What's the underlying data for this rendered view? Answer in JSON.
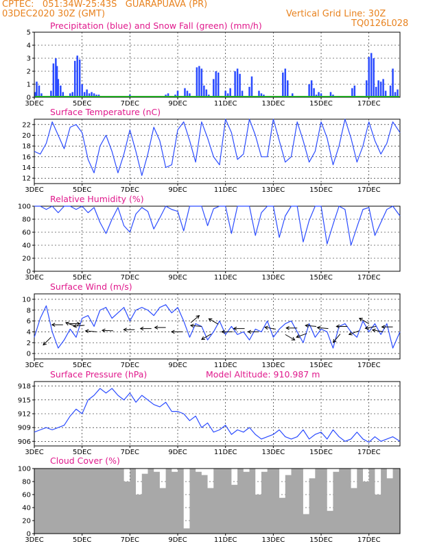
{
  "header": {
    "line1_left": "CPTEC:   051:34W-25:43S   GUARAPUAVA (PR)",
    "line2_left": "03DEC2020 30Z (GMT)",
    "line2_right": "Vertical Grid Line: 30Z",
    "line3_right": "TQ0126L028"
  },
  "colors": {
    "header": "#e8821e",
    "panel_title": "#e0198c",
    "line": "#2a4bff",
    "precip": "#2a4bff",
    "snow": "#1faa1f",
    "cloud": "#a8a8a8",
    "grid": "#000000"
  },
  "x_ticks": [
    "3DEC",
    "5DEC",
    "7DEC",
    "9DEC",
    "11DEC",
    "13DEC",
    "15DEC",
    "17DEC"
  ],
  "x_tick_days": [
    0,
    2,
    4,
    6,
    8,
    10,
    12,
    14
  ],
  "x_day_range": [
    0,
    15.3
  ],
  "chart_data": [
    {
      "type": "bar",
      "title": "Precipitation (blue) and Snow Fall (green) (mm/h)",
      "ylim": [
        0,
        5
      ],
      "yticks": [
        "0",
        "1",
        "2",
        "3",
        "4",
        "5"
      ],
      "series": [
        {
          "name": "Precipitation",
          "x": [
            0.05,
            0.1,
            0.2,
            0.3,
            0.7,
            0.8,
            0.9,
            0.95,
            1.0,
            1.1,
            1.2,
            1.5,
            1.6,
            1.7,
            1.8,
            1.9,
            2.0,
            2.1,
            2.2,
            2.3,
            2.4,
            2.5,
            2.6,
            2.7,
            3.9,
            4.0,
            4.1,
            5.5,
            5.6,
            5.9,
            6.0,
            6.3,
            6.4,
            6.5,
            6.8,
            6.9,
            7.0,
            7.1,
            7.2,
            7.3,
            7.5,
            7.6,
            7.7,
            8.0,
            8.1,
            8.2,
            8.4,
            8.5,
            8.6,
            8.7,
            9.0,
            9.1,
            9.4,
            9.5,
            9.6,
            10.4,
            10.5,
            10.6,
            10.8,
            11.5,
            11.6,
            11.7,
            11.8,
            11.9,
            12.0,
            12.4,
            12.5,
            13.3,
            13.4,
            13.9,
            14.0,
            14.1,
            14.2,
            14.3,
            14.4,
            14.5,
            14.6,
            14.7,
            14.9,
            15.0,
            15.1,
            15.2
          ],
          "values": [
            0.4,
            1.2,
            0.9,
            0.3,
            0.5,
            2.6,
            3.0,
            2.4,
            1.4,
            0.9,
            0.4,
            0.3,
            0.4,
            2.8,
            3.2,
            2.9,
            1.0,
            0.4,
            0.6,
            0.3,
            0.4,
            0.3,
            0.2,
            0.2,
            0.1,
            0.2,
            0.1,
            0.2,
            0.3,
            0.2,
            0.5,
            0.7,
            0.5,
            0.3,
            2.3,
            2.4,
            2.2,
            0.9,
            0.6,
            0.2,
            1.4,
            2.0,
            1.9,
            0.5,
            0.3,
            0.7,
            2.0,
            2.2,
            1.8,
            0.5,
            0.8,
            1.6,
            0.5,
            0.3,
            0.2,
            1.9,
            2.2,
            1.3,
            0.3,
            1.0,
            1.3,
            0.7,
            0.2,
            0.4,
            0.3,
            0.4,
            0.2,
            0.7,
            0.9,
            1.3,
            3.1,
            3.4,
            3.0,
            0.8,
            1.3,
            1.2,
            1.4,
            0.5,
            0.9,
            2.2,
            0.4,
            0.6
          ]
        },
        {
          "name": "Snow Fall",
          "x": [],
          "values": []
        }
      ]
    },
    {
      "type": "line",
      "title": "Surface Temperature (nC)",
      "ylim": [
        11,
        23
      ],
      "yticks": [
        "12",
        "14",
        "16",
        "18",
        "20",
        "22"
      ],
      "x": [
        0,
        0.25,
        0.5,
        0.75,
        1,
        1.25,
        1.5,
        1.75,
        2,
        2.25,
        2.5,
        2.75,
        3,
        3.25,
        3.5,
        3.75,
        4,
        4.25,
        4.5,
        4.75,
        5,
        5.25,
        5.5,
        5.75,
        6,
        6.25,
        6.5,
        6.75,
        7,
        7.25,
        7.5,
        7.75,
        8,
        8.25,
        8.5,
        8.75,
        9,
        9.25,
        9.5,
        9.75,
        10,
        10.25,
        10.5,
        10.75,
        11,
        11.25,
        11.5,
        11.75,
        12,
        12.25,
        12.5,
        12.75,
        13,
        13.25,
        13.5,
        13.75,
        14,
        14.25,
        14.5,
        14.75,
        15,
        15.3
      ],
      "values": [
        17.0,
        16.5,
        18.5,
        22.5,
        20.0,
        17.5,
        21.5,
        22.0,
        20.5,
        15.5,
        13.0,
        18.0,
        20.0,
        17.0,
        13.0,
        16.5,
        21.0,
        17.0,
        12.5,
        16.5,
        21.5,
        19.0,
        14.0,
        14.5,
        21.0,
        22.5,
        19.0,
        15.0,
        22.5,
        19.5,
        16.0,
        14.5,
        23.0,
        20.5,
        15.5,
        16.5,
        23.0,
        20.0,
        16.0,
        16.0,
        23.0,
        19.0,
        15.0,
        16.0,
        22.5,
        19.0,
        15.0,
        17.0,
        22.5,
        19.5,
        14.5,
        18.0,
        23.0,
        19.5,
        15.0,
        18.0,
        22.5,
        19.0,
        16.5,
        18.5,
        22.5,
        20.5
      ]
    },
    {
      "type": "line",
      "title": "Relative Humidity (%)",
      "ylim": [
        0,
        100
      ],
      "yticks": [
        "0",
        "20",
        "40",
        "60",
        "80",
        "100"
      ],
      "x": [
        0,
        0.25,
        0.5,
        0.75,
        1,
        1.25,
        1.5,
        1.75,
        2,
        2.25,
        2.5,
        2.75,
        3,
        3.25,
        3.5,
        3.75,
        4,
        4.25,
        4.5,
        4.75,
        5,
        5.25,
        5.5,
        5.75,
        6,
        6.25,
        6.5,
        6.75,
        7,
        7.25,
        7.5,
        7.75,
        8,
        8.25,
        8.5,
        8.75,
        9,
        9.25,
        9.5,
        9.75,
        10,
        10.25,
        10.5,
        10.75,
        11,
        11.25,
        11.5,
        11.75,
        12,
        12.25,
        12.5,
        12.75,
        13,
        13.25,
        13.5,
        13.75,
        14,
        14.25,
        14.5,
        14.75,
        15,
        15.3
      ],
      "values": [
        100,
        100,
        95,
        100,
        90,
        100,
        100,
        95,
        100,
        90,
        98,
        75,
        58,
        80,
        98,
        70,
        60,
        88,
        98,
        92,
        65,
        82,
        100,
        95,
        92,
        62,
        100,
        100,
        100,
        70,
        96,
        100,
        100,
        58,
        100,
        100,
        100,
        55,
        90,
        100,
        100,
        52,
        85,
        100,
        100,
        45,
        78,
        100,
        100,
        42,
        72,
        100,
        95,
        40,
        68,
        95,
        98,
        55,
        75,
        95,
        100,
        85
      ]
    },
    {
      "type": "line",
      "title": "Surface Wind (m/s)",
      "ylim": [
        -1,
        11
      ],
      "yticks": [
        "0",
        "2",
        "4",
        "6",
        "8",
        "10"
      ],
      "x": [
        0,
        0.25,
        0.5,
        0.75,
        1,
        1.25,
        1.5,
        1.75,
        2,
        2.25,
        2.5,
        2.75,
        3,
        3.25,
        3.5,
        3.75,
        4,
        4.25,
        4.5,
        4.75,
        5,
        5.25,
        5.5,
        5.75,
        6,
        6.25,
        6.5,
        6.75,
        7,
        7.25,
        7.5,
        7.75,
        8,
        8.25,
        8.5,
        8.75,
        9,
        9.25,
        9.5,
        9.75,
        10,
        10.25,
        10.5,
        10.75,
        11,
        11.25,
        11.5,
        11.75,
        12,
        12.25,
        12.5,
        12.75,
        13,
        13.25,
        13.5,
        13.75,
        14,
        14.25,
        14.5,
        14.75,
        15,
        15.3
      ],
      "values": [
        3.0,
        6.5,
        8.8,
        4.0,
        1.0,
        2.5,
        4.5,
        3.0,
        6.5,
        7.0,
        5.0,
        8.0,
        8.5,
        6.5,
        7.5,
        8.5,
        6.0,
        8.0,
        8.5,
        8.0,
        7.0,
        8.5,
        9.0,
        7.5,
        8.5,
        6.0,
        3.0,
        5.5,
        5.0,
        2.5,
        4.0,
        6.0,
        3.5,
        5.0,
        3.5,
        4.0,
        2.5,
        4.5,
        4.0,
        6.0,
        3.0,
        4.5,
        5.5,
        6.0,
        4.0,
        2.0,
        5.5,
        3.0,
        4.5,
        4.0,
        1.0,
        5.0,
        5.5,
        4.0,
        3.0,
        6.0,
        4.0,
        5.5,
        3.5,
        5.5,
        1.0,
        4.0
      ],
      "vectors": [
        {
          "x": 0.7,
          "y": 3.0,
          "dir_deg": 225
        },
        {
          "x": 1.2,
          "y": 5.3,
          "dir_deg": 180
        },
        {
          "x": 1.45,
          "y": 5.5,
          "dir_deg": 0
        },
        {
          "x": 1.75,
          "y": 5.0,
          "dir_deg": 160
        },
        {
          "x": 2.1,
          "y": 5.2,
          "dir_deg": 185
        },
        {
          "x": 2.6,
          "y": 4.0,
          "dir_deg": 175
        },
        {
          "x": 3.3,
          "y": 4.2,
          "dir_deg": 178
        },
        {
          "x": 4.2,
          "y": 4.4,
          "dir_deg": 180
        },
        {
          "x": 4.9,
          "y": 4.6,
          "dir_deg": 180
        },
        {
          "x": 5.5,
          "y": 4.8,
          "dir_deg": 180
        },
        {
          "x": 6.2,
          "y": 4.0,
          "dir_deg": 180
        },
        {
          "x": 6.55,
          "y": 5.7,
          "dir_deg": 40
        },
        {
          "x": 7.0,
          "y": 5.0,
          "dir_deg": 175
        },
        {
          "x": 7.4,
          "y": 3.6,
          "dir_deg": 210
        },
        {
          "x": 7.7,
          "y": 5.4,
          "dir_deg": 150
        },
        {
          "x": 8.3,
          "y": 4.0,
          "dir_deg": 180
        },
        {
          "x": 8.8,
          "y": 4.6,
          "dir_deg": 180
        },
        {
          "x": 9.4,
          "y": 4.0,
          "dir_deg": 180
        },
        {
          "x": 10.1,
          "y": 4.5,
          "dir_deg": 170
        },
        {
          "x": 10.5,
          "y": 3.5,
          "dir_deg": 330
        },
        {
          "x": 11.0,
          "y": 4.7,
          "dir_deg": 180
        },
        {
          "x": 11.4,
          "y": 3.7,
          "dir_deg": 200
        },
        {
          "x": 11.8,
          "y": 5.0,
          "dir_deg": 175
        },
        {
          "x": 12.3,
          "y": 4.6,
          "dir_deg": 175
        },
        {
          "x": 12.8,
          "y": 3.6,
          "dir_deg": 230
        },
        {
          "x": 13.1,
          "y": 5.0,
          "dir_deg": 180
        },
        {
          "x": 13.6,
          "y": 4.2,
          "dir_deg": 200
        },
        {
          "x": 14.0,
          "y": 5.5,
          "dir_deg": 150
        },
        {
          "x": 14.3,
          "y": 5.0,
          "dir_deg": 190
        },
        {
          "x": 14.6,
          "y": 4.0,
          "dir_deg": 170
        },
        {
          "x": 15.0,
          "y": 4.9,
          "dir_deg": 180
        }
      ]
    },
    {
      "type": "line",
      "title": "Surface Pressure (hPa)",
      "subtitle": "Model Altitude: 910.987  m",
      "ylim": [
        905,
        919
      ],
      "yticks": [
        "906",
        "909",
        "912",
        "915",
        "918"
      ],
      "x": [
        0,
        0.25,
        0.5,
        0.75,
        1,
        1.25,
        1.5,
        1.75,
        2,
        2.25,
        2.5,
        2.75,
        3,
        3.25,
        3.5,
        3.75,
        4,
        4.25,
        4.5,
        4.75,
        5,
        5.25,
        5.5,
        5.75,
        6,
        6.25,
        6.5,
        6.75,
        7,
        7.25,
        7.5,
        7.75,
        8,
        8.25,
        8.5,
        8.75,
        9,
        9.25,
        9.5,
        9.75,
        10,
        10.25,
        10.5,
        10.75,
        11,
        11.25,
        11.5,
        11.75,
        12,
        12.25,
        12.5,
        12.75,
        13,
        13.25,
        13.5,
        13.75,
        14,
        14.25,
        14.5,
        14.75,
        15,
        15.3
      ],
      "values": [
        908.0,
        908.5,
        909.0,
        908.5,
        909.0,
        909.5,
        911.5,
        913.0,
        912.0,
        915.0,
        916.0,
        917.5,
        916.5,
        917.5,
        916.0,
        915.0,
        916.5,
        914.5,
        916.0,
        915.0,
        914.0,
        913.5,
        914.5,
        912.5,
        912.5,
        912.0,
        910.5,
        911.5,
        909.0,
        910.0,
        908.0,
        908.5,
        909.5,
        907.5,
        908.5,
        908.0,
        909.0,
        907.5,
        906.5,
        907.0,
        907.5,
        908.5,
        907.0,
        906.5,
        907.0,
        908.5,
        906.5,
        907.5,
        908.0,
        906.5,
        908.5,
        907.0,
        906.0,
        906.5,
        908.0,
        906.5,
        905.8,
        907.0,
        906.0,
        906.5,
        907.0,
        906.0
      ]
    },
    {
      "type": "bar",
      "title": "Cloud Cover (%)",
      "ylim": [
        0,
        100
      ],
      "yticks": [
        "0",
        "20",
        "40",
        "60",
        "80",
        "100"
      ],
      "x": [
        0,
        0.25,
        0.5,
        0.75,
        1,
        1.25,
        1.5,
        1.75,
        2,
        2.25,
        2.5,
        2.75,
        3,
        3.25,
        3.5,
        3.75,
        4,
        4.25,
        4.5,
        4.75,
        5,
        5.25,
        5.5,
        5.75,
        6,
        6.25,
        6.5,
        6.75,
        7,
        7.25,
        7.5,
        7.75,
        8,
        8.25,
        8.5,
        8.75,
        9,
        9.25,
        9.5,
        9.75,
        10,
        10.25,
        10.5,
        10.75,
        11,
        11.25,
        11.5,
        11.75,
        12,
        12.25,
        12.5,
        12.75,
        13,
        13.25,
        13.5,
        13.75,
        14,
        14.25,
        14.5,
        14.75,
        15,
        15.3
      ],
      "values": [
        100,
        100,
        100,
        100,
        100,
        100,
        100,
        100,
        100,
        100,
        100,
        100,
        100,
        100,
        100,
        80,
        100,
        60,
        92,
        100,
        95,
        70,
        100,
        95,
        100,
        8,
        100,
        95,
        90,
        70,
        100,
        100,
        100,
        75,
        100,
        95,
        100,
        60,
        95,
        100,
        100,
        55,
        90,
        100,
        100,
        30,
        85,
        100,
        100,
        35,
        95,
        100,
        100,
        70,
        100,
        80,
        100,
        60,
        100,
        85,
        100,
        100
      ]
    }
  ]
}
